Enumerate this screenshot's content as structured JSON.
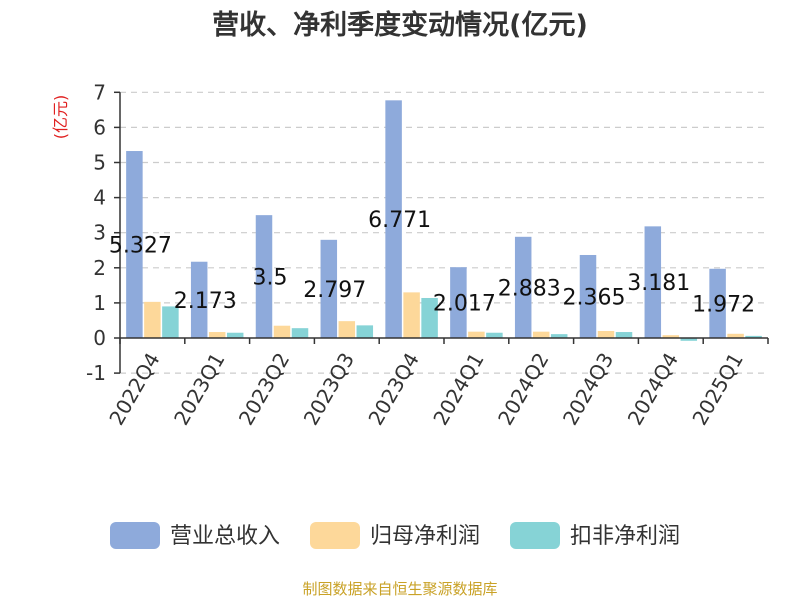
{
  "chart_data": {
    "type": "bar",
    "title": "营收、净利季度变动情况(亿元)",
    "ylabel": "(亿元)",
    "ylim": [
      -1,
      7
    ],
    "yticks": [
      -1,
      0,
      1,
      2,
      3,
      4,
      5,
      6,
      7
    ],
    "grid": true,
    "legend_position": "bottom",
    "categories": [
      "2022Q4",
      "2023Q1",
      "2023Q2",
      "2023Q3",
      "2023Q4",
      "2024Q1",
      "2024Q2",
      "2024Q3",
      "2024Q4",
      "2025Q1"
    ],
    "series": [
      {
        "name": "营业总收入",
        "color": "#8eaadb",
        "values": [
          5.327,
          2.173,
          3.5,
          2.797,
          6.771,
          2.017,
          2.883,
          2.365,
          3.181,
          1.972
        ],
        "labels": [
          "5.327",
          "2.173",
          "3.5",
          "2.797",
          "6.771",
          "2.017",
          "2.883",
          "2.365",
          "3.181",
          "1.972"
        ]
      },
      {
        "name": "归母净利润",
        "color": "#fdd89a",
        "values": [
          1.03,
          0.17,
          0.35,
          0.48,
          1.3,
          0.18,
          0.18,
          0.2,
          0.08,
          0.12
        ]
      },
      {
        "name": "扣非净利润",
        "color": "#86d3d6",
        "values": [
          0.9,
          0.15,
          0.28,
          0.36,
          1.14,
          0.15,
          0.11,
          0.17,
          -0.08,
          0.06
        ]
      }
    ]
  },
  "footer": {
    "source": "制图数据来自恒生聚源数据库"
  }
}
